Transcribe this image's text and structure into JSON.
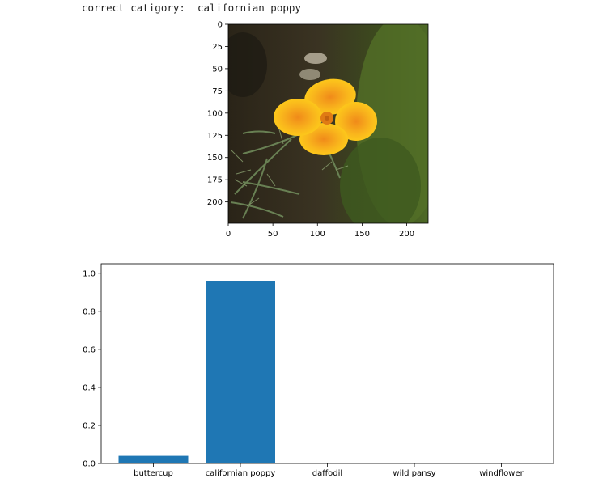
{
  "header": {
    "label": "correct catigory:",
    "value": "californian poppy"
  },
  "image_panel": {
    "subject": "yellow californian poppy flower photo",
    "x_ticks": [
      "0",
      "50",
      "100",
      "150",
      "200"
    ],
    "y_ticks": [
      "0",
      "25",
      "50",
      "75",
      "100",
      "125",
      "150",
      "175",
      "200"
    ],
    "x_tick_values": [
      0,
      50,
      100,
      150,
      200
    ],
    "y_tick_values": [
      0,
      25,
      50,
      75,
      100,
      125,
      150,
      175,
      200
    ],
    "extent": [
      0,
      224
    ]
  },
  "chart_data": {
    "type": "bar",
    "categories": [
      "buttercup",
      "californian poppy",
      "daffodil",
      "wild pansy",
      "windflower"
    ],
    "values": [
      0.04,
      0.96,
      0.0,
      0.0,
      0.0
    ],
    "ylim": [
      0,
      1.0
    ],
    "y_ticks": [
      "0.0",
      "0.2",
      "0.4",
      "0.6",
      "0.8",
      "1.0"
    ],
    "y_tick_values": [
      0,
      0.2,
      0.4,
      0.6,
      0.8,
      1.0
    ],
    "bar_color": "#1f77b4",
    "grid": false
  }
}
